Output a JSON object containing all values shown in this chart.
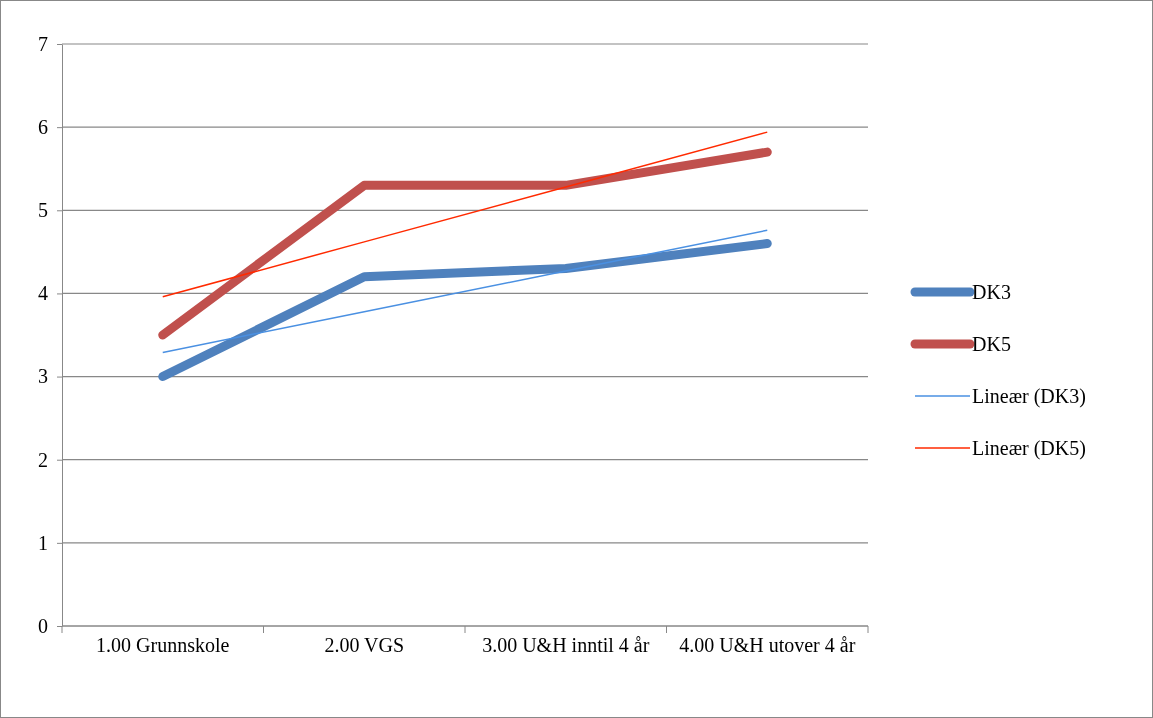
{
  "chart_data": {
    "type": "line",
    "categories": [
      "1.00 Grunnskole",
      "2.00 VGS",
      "3.00 U&H inntil 4 år",
      "4.00 U&H utover 4 år"
    ],
    "series": [
      {
        "name": "DK3",
        "color": "#4f81bd",
        "values": [
          3.0,
          4.2,
          4.3,
          4.6
        ]
      },
      {
        "name": "DK5",
        "color": "#c0504d",
        "values": [
          3.5,
          5.3,
          5.3,
          5.7
        ]
      },
      {
        "name": "Lineær (DK3)",
        "color": "#4a90e2",
        "values": [
          3.29,
          3.78,
          4.27,
          4.76
        ]
      },
      {
        "name": "Lineær (DK5)",
        "color": "#ff2a00",
        "values": [
          3.96,
          4.62,
          5.28,
          5.94
        ]
      }
    ],
    "ylim": [
      0,
      7
    ],
    "yticks": [
      0,
      1,
      2,
      3,
      4,
      5,
      6,
      7
    ],
    "grid": "y",
    "legend": "right",
    "marker": "none",
    "line_style": "solid"
  }
}
